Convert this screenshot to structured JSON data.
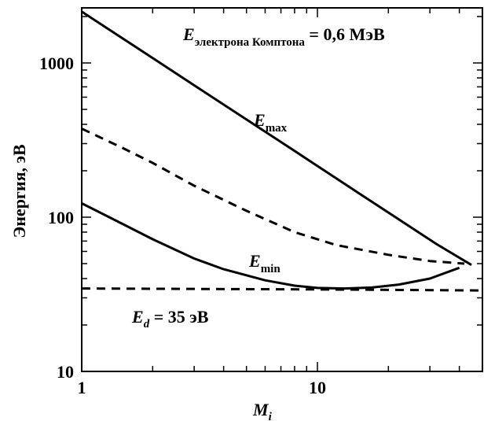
{
  "chart_data": {
    "type": "line",
    "x_scale": "log",
    "y_scale": "log",
    "xlim": [
      1,
      50
    ],
    "ylim": [
      10,
      2500
    ],
    "x_ticks": [
      1,
      10
    ],
    "x_tick_labels": [
      "1",
      "10"
    ],
    "y_ticks": [
      10,
      100,
      1000
    ],
    "y_tick_labels": [
      "10",
      "100",
      "1000"
    ],
    "xlabel": "M",
    "xlabel_sub": "i",
    "ylabel": "Энергия, эВ",
    "grid": false,
    "annotations": {
      "top_main": "E",
      "top_sub": "электрона Комптона",
      "top_rest": " = 0,6 МэВ",
      "emax_main": "E",
      "emax_sub": "max",
      "emin_main": "E",
      "emin_sub": "min",
      "ed_main": "E",
      "ed_sub": "d",
      "ed_rest": " = 35 эВ"
    },
    "series": [
      {
        "style": "solid",
        "points": [
          [
            1,
            2150
          ],
          [
            2,
            1075
          ],
          [
            4,
            537
          ],
          [
            8,
            269
          ],
          [
            16,
            134
          ],
          [
            32,
            67
          ],
          [
            45,
            49
          ]
        ]
      },
      {
        "style": "dashed",
        "points": [
          [
            1,
            375
          ],
          [
            1.5,
            280
          ],
          [
            2,
            225
          ],
          [
            3,
            160
          ],
          [
            5,
            110
          ],
          [
            8,
            80
          ],
          [
            12,
            66
          ],
          [
            20,
            57
          ],
          [
            30,
            52
          ],
          [
            42,
            50
          ]
        ]
      },
      {
        "style": "solid",
        "points": [
          [
            1,
            123
          ],
          [
            1.5,
            90
          ],
          [
            2,
            72
          ],
          [
            3,
            54
          ],
          [
            4,
            46
          ],
          [
            6,
            39
          ],
          [
            8,
            36
          ],
          [
            10,
            34.8
          ],
          [
            13,
            34.5
          ],
          [
            17,
            35
          ],
          [
            22,
            36.5
          ],
          [
            30,
            40
          ],
          [
            40,
            47
          ]
        ]
      },
      {
        "style": "dashed",
        "points": [
          [
            1,
            34.5
          ],
          [
            10,
            34
          ],
          [
            50,
            33.5
          ]
        ]
      }
    ]
  }
}
